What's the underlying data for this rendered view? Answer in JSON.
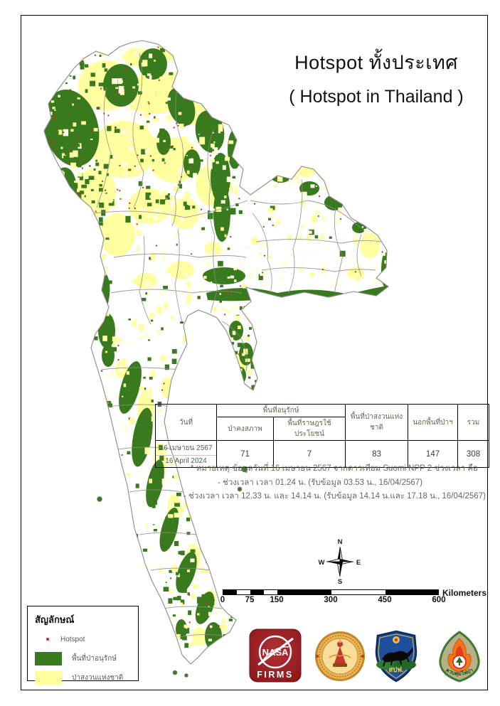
{
  "title": {
    "thai": "Hotspot ทั้งประเทศ",
    "english": "( Hotspot in Thailand )"
  },
  "table": {
    "col_date": "วันที่",
    "col_conservation_group": "พื้นที่อนุรักษ์",
    "col_intact_forest": "ป่าคงสภาพ",
    "col_people_use": "พื้นที่ราษฎรใช้ประโยชน์",
    "col_national_reserved": "พื้นที่ป่าสงวนแห่งชาติ",
    "col_outside_forest": "นอกพื้นที่ป่าฯ",
    "col_total": "รวม",
    "row": {
      "date_thai": "16 เมษายน 2567",
      "date_eng": "16 April 2024",
      "intact": "71",
      "people_use": "7",
      "national_reserved": "83",
      "outside": "147",
      "total": "308"
    }
  },
  "notes": {
    "line1": "* หมายเหตุ ข้อมูลวันที่ 16 เมษายน 2567 จากดาวเทียม Suomi NPP 2 ช่วงเวลา คือ",
    "line2": "- ช่วงเวลา เวลา 01.24 น. (รับข้อมูล 03.53 น., 16/04/2567)",
    "line3": "- ช่วงเวลา เวลา 12.33 น. และ 14.14 น. (รับข้อมูล 14.14 น.และ 17.18 น., 16/04/2567)"
  },
  "compass": {
    "n": "N",
    "s": "S",
    "e": "E",
    "w": "W"
  },
  "scalebar": {
    "ticks": [
      "0",
      "75",
      "150",
      "300",
      "450",
      "600"
    ],
    "unit": "Kilometers"
  },
  "legend": {
    "title": "สัญลักษณ์",
    "items": [
      {
        "label": "Hotspot"
      },
      {
        "label": "พื้นที่ป่าอนุรักษ์"
      },
      {
        "label": "ป่าสงวนแห่งชาติ"
      }
    ]
  },
  "logos": {
    "nasa_text": "NASA",
    "firms_text": "FIRMS",
    "shield_text": "สปฟ.",
    "badge_text": "ควบคุมไฟป่า"
  },
  "colors": {
    "conservation_forest_green": "#3a7a1e",
    "national_reserved_yellow": "#ffffa0",
    "pale_yellow": "#fffde2",
    "hotspot_red": "#c8281e",
    "province_border_gray": "#8a8a8a",
    "note_text": "#6b675c",
    "header_text": "#6b6455",
    "table_date_green": "#4f6456",
    "nasa_red": "#9e2123",
    "shield_blue": "#1e4f9e",
    "badge_khaki": "#b5b28a",
    "badge_green": "#3c7a2e",
    "flame_orange": "#f07818"
  }
}
